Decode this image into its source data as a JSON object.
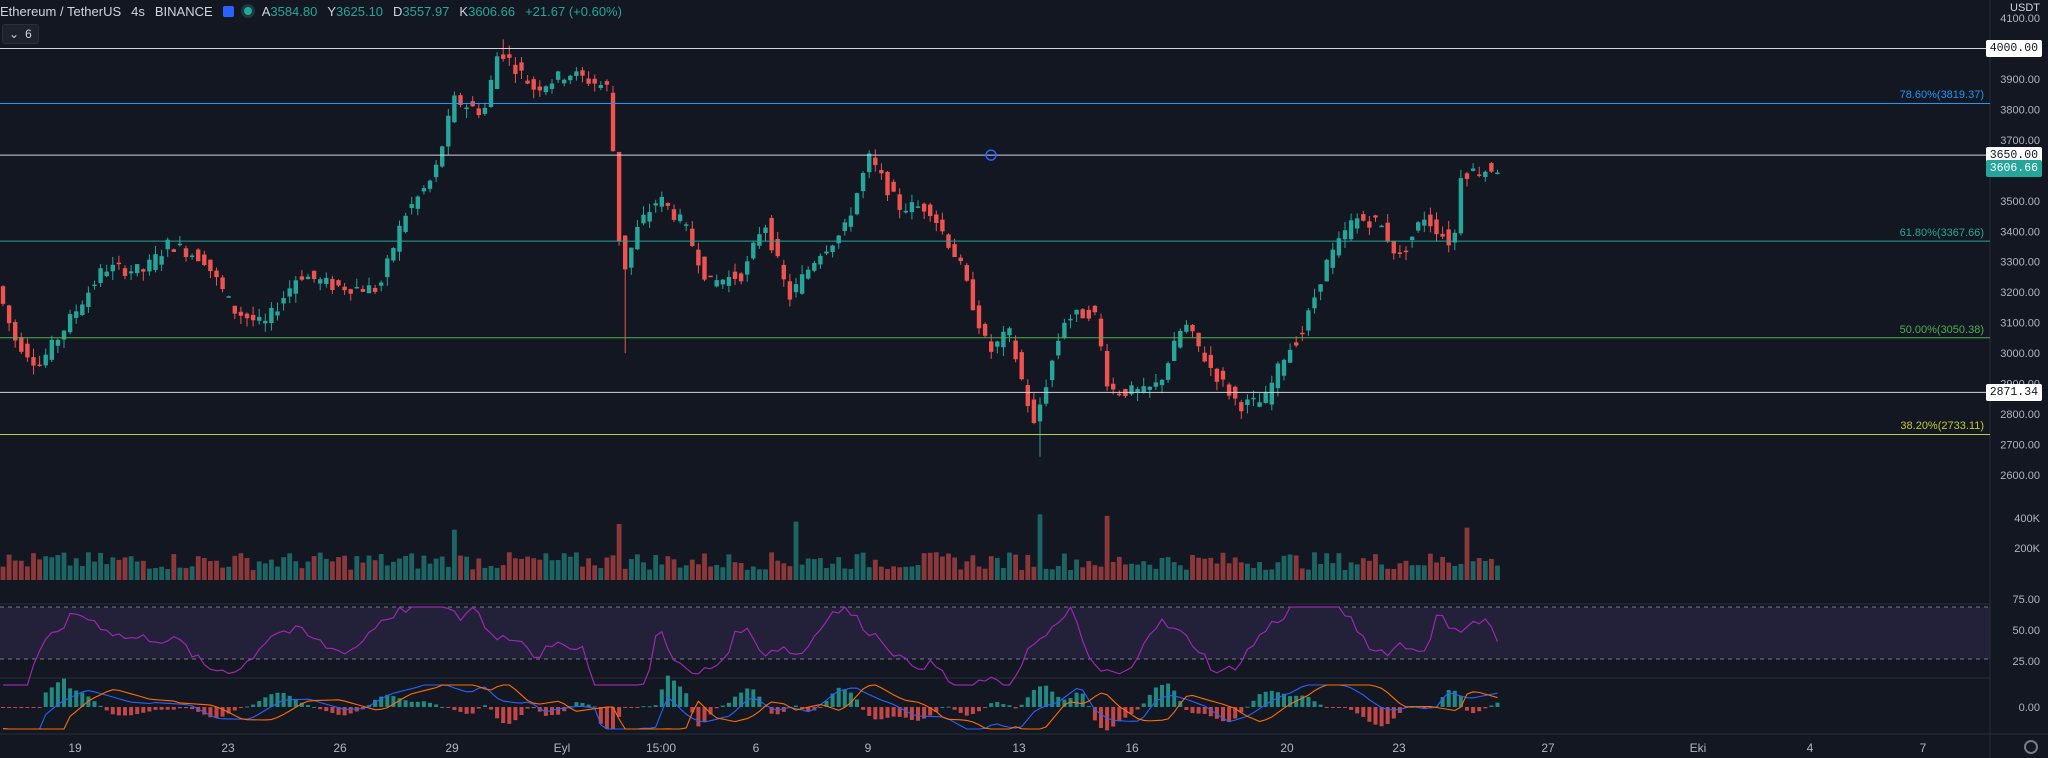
{
  "header": {
    "symbol": "Ethereum / TetherUS",
    "interval": "4s",
    "exchange": "BINANCE",
    "open_label": "A",
    "open": "3584.80",
    "high_label": "Y",
    "high": "3625.10",
    "low_label": "D",
    "low": "3557.97",
    "close_label": "K",
    "close": "3606.66",
    "change": "+21.67 (+0.60%)",
    "flag_icon": "flag-icon",
    "live_icon": "live-dot-icon"
  },
  "indicator_toggle": {
    "label": "6",
    "icon": "chevron-down-icon"
  },
  "currency": "USDT",
  "colors": {
    "bg": "#131722",
    "up": "#26a69a",
    "down": "#ef5350",
    "grid": "#1e222d",
    "text": "#b2b5be"
  },
  "price_axis": {
    "min": 2500,
    "max": 4150,
    "ticks": [
      "4100.00",
      "4000.00",
      "3900.00",
      "3800.00",
      "3700.00",
      "3600.00",
      "3500.00",
      "3400.00",
      "3300.00",
      "3200.00",
      "3100.00",
      "3000.00",
      "2900.00",
      "2800.00",
      "2700.00",
      "2600.00"
    ]
  },
  "horizontal_lines": [
    {
      "price": 4000.0,
      "label": "4000.00",
      "color": "#d1d4dc"
    },
    {
      "price": 3650.0,
      "label": "3650.00",
      "color": "#d1d4dc"
    },
    {
      "price": 2871.34,
      "label": "2871.34",
      "color": "#d1d4dc"
    }
  ],
  "fib_levels": [
    {
      "price": 3819.37,
      "label": "78.60%(3819.37)",
      "color": "#2196f3"
    },
    {
      "price": 3367.66,
      "label": "61.80%(3367.66)",
      "color": "#26a69a"
    },
    {
      "price": 3050.38,
      "label": "50.00%(3050.38)",
      "color": "#4caf50"
    },
    {
      "price": 2733.11,
      "label": "38.20%(2733.11)",
      "color": "#c0ca33"
    }
  ],
  "last_price": {
    "label": "3606.66",
    "color": "#26a69a"
  },
  "volume_axis": {
    "ticks": [
      "400K",
      "200K"
    ]
  },
  "rsi": {
    "upper": 70,
    "lower": 30,
    "ticks": [
      "75.00",
      "50.00",
      "25.00"
    ]
  },
  "macd": {
    "ticks": [
      "0.00"
    ]
  },
  "time_axis": [
    "19",
    "23",
    "26",
    "29",
    "Eyl",
    "15:00",
    "6",
    "9",
    "13",
    "16",
    "20",
    "23",
    "27",
    "Eki",
    "4",
    "7"
  ],
  "chart_data": {
    "type": "candlestick",
    "price_path": [
      [
        0,
        3250
      ],
      [
        20,
        3050
      ],
      [
        45,
        2960
      ],
      [
        70,
        3080
      ],
      [
        110,
        3280
      ],
      [
        150,
        3270
      ],
      [
        175,
        3360
      ],
      [
        210,
        3310
      ],
      [
        240,
        3140
      ],
      [
        270,
        3090
      ],
      [
        305,
        3260
      ],
      [
        340,
        3220
      ],
      [
        385,
        3210
      ],
      [
        410,
        3450
      ],
      [
        440,
        3580
      ],
      [
        460,
        3830
      ],
      [
        490,
        3790
      ],
      [
        505,
        4000
      ],
      [
        540,
        3870
      ],
      [
        575,
        3920
      ],
      [
        615,
        3870
      ],
      [
        622,
        3520
      ],
      [
        628,
        3250
      ],
      [
        645,
        3420
      ],
      [
        665,
        3510
      ],
      [
        690,
        3420
      ],
      [
        715,
        3230
      ],
      [
        750,
        3260
      ],
      [
        770,
        3440
      ],
      [
        795,
        3180
      ],
      [
        825,
        3330
      ],
      [
        850,
        3400
      ],
      [
        875,
        3640
      ],
      [
        905,
        3480
      ],
      [
        935,
        3480
      ],
      [
        965,
        3300
      ],
      [
        995,
        3000
      ],
      [
        1015,
        3070
      ],
      [
        1040,
        2760
      ],
      [
        1070,
        3110
      ],
      [
        1100,
        3140
      ],
      [
        1115,
        2880
      ],
      [
        1150,
        2870
      ],
      [
        1165,
        2900
      ],
      [
        1190,
        3100
      ],
      [
        1215,
        2960
      ],
      [
        1245,
        2830
      ],
      [
        1270,
        2840
      ],
      [
        1290,
        2990
      ],
      [
        1310,
        3080
      ],
      [
        1330,
        3280
      ],
      [
        1360,
        3440
      ],
      [
        1385,
        3430
      ],
      [
        1405,
        3310
      ],
      [
        1430,
        3450
      ],
      [
        1460,
        3350
      ],
      [
        1465,
        3590
      ],
      [
        1500,
        3606.66
      ]
    ],
    "volume_spikes": [
      621,
      1109,
      1039,
      1465,
      455,
      795
    ]
  }
}
